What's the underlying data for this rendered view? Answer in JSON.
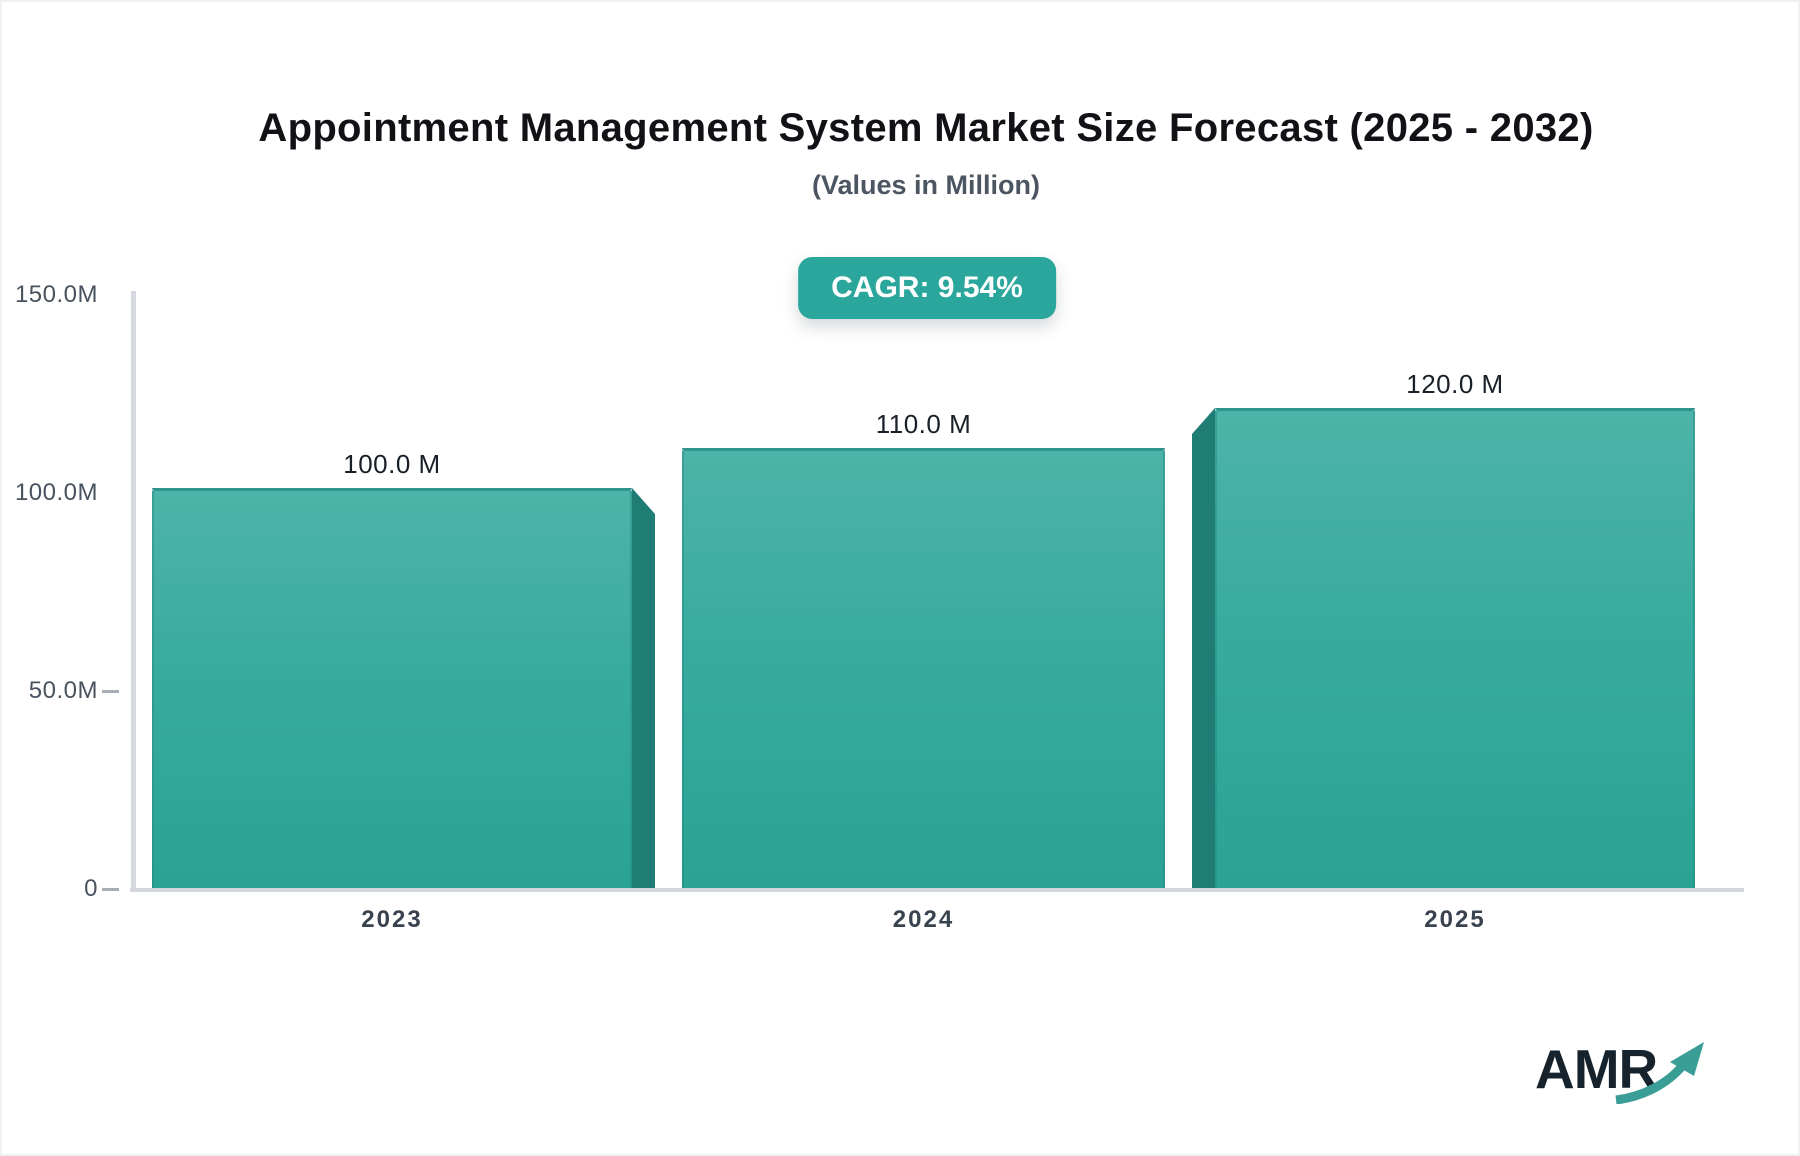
{
  "chart_data": {
    "type": "bar",
    "title": "Appointment Management System Market Size Forecast (2025 - 2032)",
    "subtitle": "(Values in Million)",
    "cagr_label": "CAGR: 9.54%",
    "categories": [
      "2023",
      "2024",
      "2025"
    ],
    "values": [
      100.0,
      110.0,
      120.0
    ],
    "bar_labels": [
      "100.0 M",
      "110.0 M",
      "120.0 M"
    ],
    "unit": "Million",
    "ylim": [
      0,
      150
    ],
    "y_ticks": [
      {
        "label": "150.0M",
        "value": 150.0,
        "tick_mark": false
      },
      {
        "label": "100.0M",
        "value": 100.0,
        "tick_mark": false
      },
      {
        "label": "50.0M",
        "value": 50.0,
        "tick_mark": true
      },
      {
        "label": "0",
        "value": 0.0,
        "tick_mark": true
      }
    ],
    "grid": false,
    "legend": "none",
    "colors": {
      "bar_gradient_top": "#4eb3a9",
      "bar_gradient_bottom": "#2aa295",
      "bar_side_face": "#1f7d76",
      "badge_background": "#2aa69c",
      "axis_line": "#d7d9e0"
    }
  },
  "logo": {
    "text": "AMR",
    "arrow_color": "#3a9e97"
  }
}
